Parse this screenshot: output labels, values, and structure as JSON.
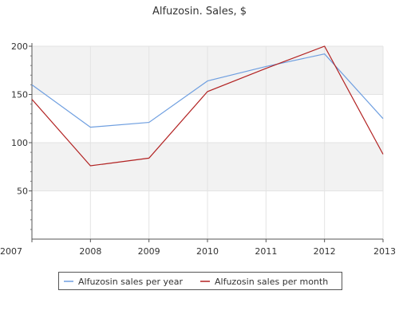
{
  "chart_data": {
    "type": "line",
    "title": "Alfuzosin. Sales, $",
    "x": [
      "2007",
      "2008",
      "2009",
      "2010",
      "2011",
      "2012",
      "2013"
    ],
    "ylim": [
      0,
      200
    ],
    "yticks": [
      50,
      100,
      150,
      200
    ],
    "grid": true,
    "legend_position": "bottom",
    "series": [
      {
        "name": "Alfuzosin sales per year",
        "color": "#6f9fe0",
        "values": [
          160,
          116,
          121,
          164,
          179,
          192,
          125
        ]
      },
      {
        "name": "Alfuzosin sales per month",
        "color": "#b22222",
        "values": [
          145,
          76,
          84,
          153,
          177,
          200,
          88
        ]
      }
    ]
  }
}
